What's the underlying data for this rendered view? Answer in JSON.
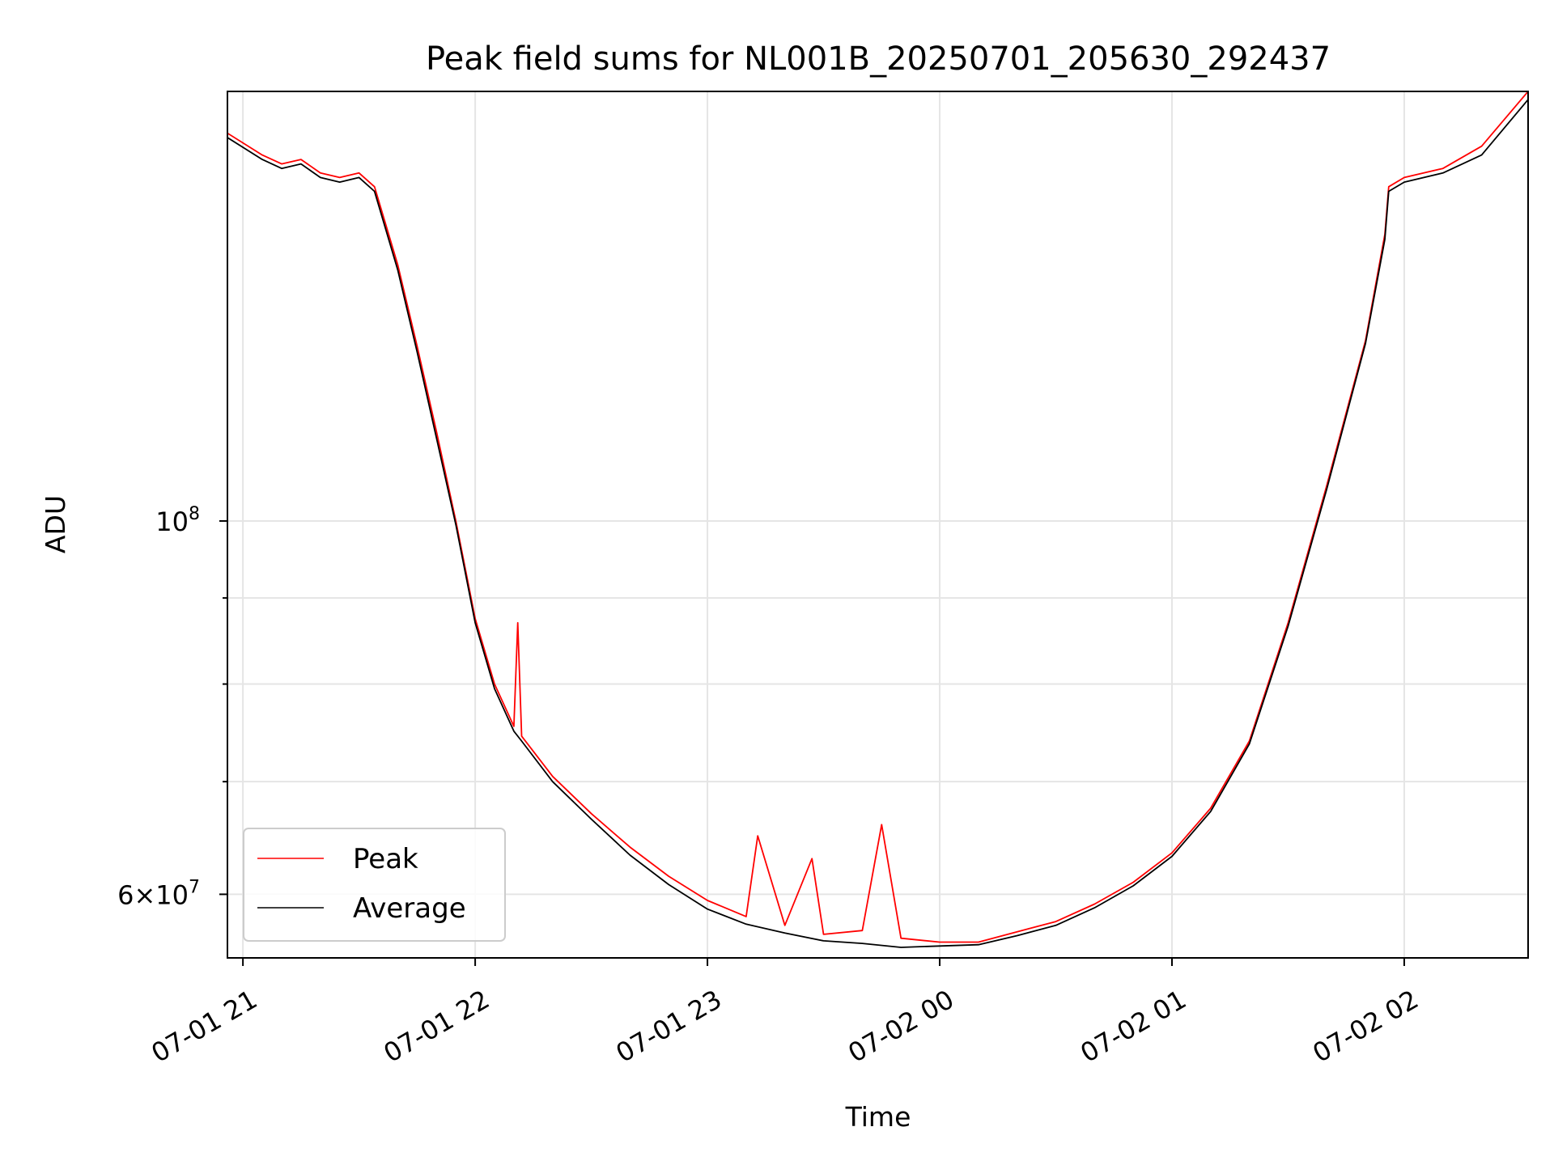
{
  "chart_data": {
    "type": "line",
    "title": "Peak field sums for NL001B_20250701_205630_292437",
    "xlabel": "Time",
    "ylabel": "ADU",
    "y_scale": "log",
    "xlim": [
      "2025-07-01 20:56",
      "2025-07-02 02:32"
    ],
    "ylim": [
      55000000,
      180000000
    ],
    "x_ticks": [
      "07-01 21",
      "07-01 22",
      "07-01 23",
      "07-02 00",
      "07-02 01",
      "07-02 02"
    ],
    "y_ticks": [
      {
        "value": 60000000,
        "base": "6×10",
        "exp": "7"
      },
      {
        "value": 100000000,
        "base": "10",
        "exp": "8"
      }
    ],
    "grid": true,
    "legend_position": "lower-left",
    "colors": {
      "peak": "#ff0000",
      "average": "#000000"
    },
    "series": [
      {
        "name": "Peak",
        "x": [
          "2025-07-01 20:56",
          "2025-07-01 21:05",
          "2025-07-01 21:10",
          "2025-07-01 21:15",
          "2025-07-01 21:20",
          "2025-07-01 21:25",
          "2025-07-01 21:30",
          "2025-07-01 21:34",
          "2025-07-01 21:40",
          "2025-07-01 21:45",
          "2025-07-01 21:50",
          "2025-07-01 21:55",
          "2025-07-01 22:00",
          "2025-07-01 22:05",
          "2025-07-01 22:10",
          "2025-07-01 22:11",
          "2025-07-01 22:12",
          "2025-07-01 22:20",
          "2025-07-01 22:30",
          "2025-07-01 22:40",
          "2025-07-01 22:50",
          "2025-07-01 23:00",
          "2025-07-01 23:10",
          "2025-07-01 23:13",
          "2025-07-01 23:20",
          "2025-07-01 23:27",
          "2025-07-01 23:30",
          "2025-07-01 23:40",
          "2025-07-01 23:45",
          "2025-07-01 23:50",
          "2025-07-02 00:00",
          "2025-07-02 00:10",
          "2025-07-02 00:20",
          "2025-07-02 00:30",
          "2025-07-02 00:40",
          "2025-07-02 00:50",
          "2025-07-02 01:00",
          "2025-07-02 01:10",
          "2025-07-02 01:20",
          "2025-07-02 01:30",
          "2025-07-02 01:40",
          "2025-07-02 01:50",
          "2025-07-02 01:55",
          "2025-07-02 01:56",
          "2025-07-02 02:00",
          "2025-07-02 02:10",
          "2025-07-02 02:20",
          "2025-07-02 02:32"
        ],
        "y": [
          170000000,
          165000000,
          163000000,
          164000000,
          161000000,
          160000000,
          161000000,
          158000000,
          142000000,
          127000000,
          113000000,
          100000000,
          87500000,
          80000000,
          75500000,
          87000000,
          74500000,
          70500000,
          67000000,
          64000000,
          61500000,
          59500000,
          58200000,
          65000000,
          57500000,
          63000000,
          56800000,
          57100000,
          66000000,
          56500000,
          56200000,
          56200000,
          57000000,
          57800000,
          59200000,
          61000000,
          63500000,
          67500000,
          74000000,
          87000000,
          105000000,
          128000000,
          148000000,
          158000000,
          160000000,
          162000000,
          167000000,
          180000000
        ]
      },
      {
        "name": "Average",
        "x": [
          "2025-07-01 20:56",
          "2025-07-01 21:05",
          "2025-07-01 21:10",
          "2025-07-01 21:15",
          "2025-07-01 21:20",
          "2025-07-01 21:25",
          "2025-07-01 21:30",
          "2025-07-01 21:34",
          "2025-07-01 21:40",
          "2025-07-01 21:45",
          "2025-07-01 21:50",
          "2025-07-01 21:55",
          "2025-07-01 22:00",
          "2025-07-01 22:05",
          "2025-07-01 22:10",
          "2025-07-01 22:12",
          "2025-07-01 22:20",
          "2025-07-01 22:30",
          "2025-07-01 22:40",
          "2025-07-01 22:50",
          "2025-07-01 23:00",
          "2025-07-01 23:10",
          "2025-07-01 23:20",
          "2025-07-01 23:30",
          "2025-07-01 23:40",
          "2025-07-01 23:50",
          "2025-07-02 00:00",
          "2025-07-02 00:10",
          "2025-07-02 00:20",
          "2025-07-02 00:30",
          "2025-07-02 00:40",
          "2025-07-02 00:50",
          "2025-07-02 01:00",
          "2025-07-02 01:10",
          "2025-07-02 01:20",
          "2025-07-02 01:30",
          "2025-07-02 01:40",
          "2025-07-02 01:50",
          "2025-07-02 01:55",
          "2025-07-02 01:56",
          "2025-07-02 02:00",
          "2025-07-02 02:10",
          "2025-07-02 02:20",
          "2025-07-02 02:32"
        ],
        "y": [
          169000000,
          164000000,
          162000000,
          163000000,
          160000000,
          159000000,
          160000000,
          157000000,
          141000000,
          126000000,
          112000000,
          99500000,
          87000000,
          79500000,
          75000000,
          74000000,
          70000000,
          66500000,
          63300000,
          60800000,
          58800000,
          57600000,
          56900000,
          56300000,
          56100000,
          55800000,
          55900000,
          56000000,
          56700000,
          57500000,
          58900000,
          60700000,
          63200000,
          67200000,
          73700000,
          86600000,
          104500000,
          127500000,
          147000000,
          157000000,
          159000000,
          161000000,
          165000000,
          178000000
        ]
      }
    ]
  }
}
